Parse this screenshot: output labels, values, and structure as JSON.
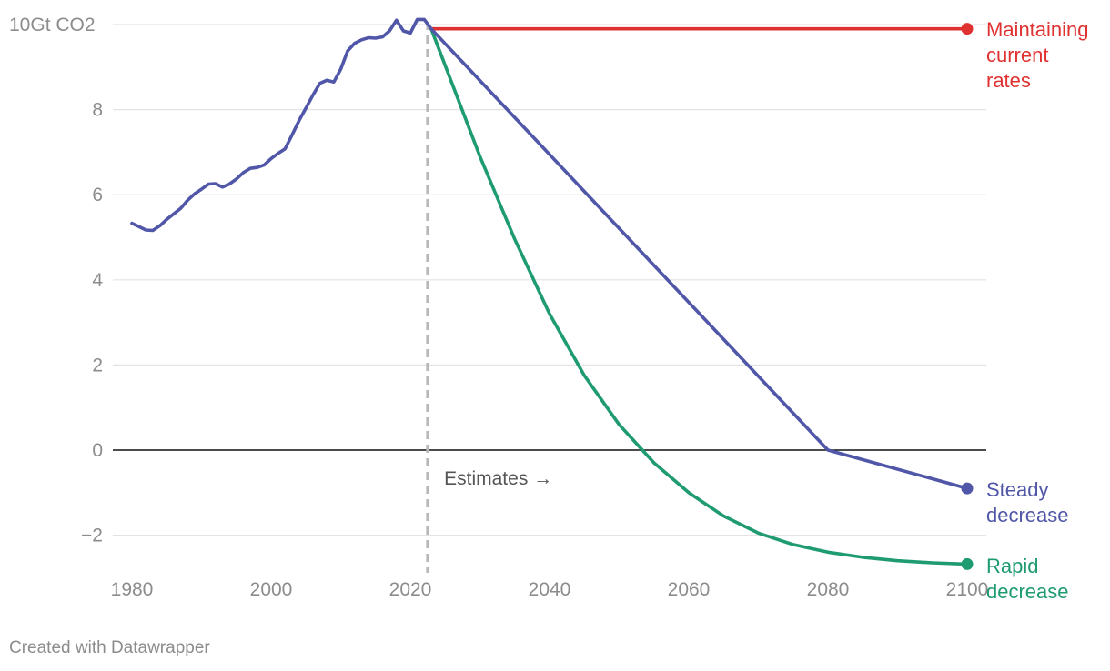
{
  "chart_data": {
    "type": "line",
    "title": "",
    "xlabel": "",
    "ylabel": "",
    "y_unit_label": "10Gt CO2",
    "xlim": [
      1977,
      2102
    ],
    "ylim": [
      -2.85,
      10.3
    ],
    "x_ticks": [
      1980,
      2000,
      2020,
      2040,
      2060,
      2080,
      2100
    ],
    "x_tick_labels": [
      "1980",
      "2000",
      "2020",
      "2040",
      "2060",
      "2080",
      "2100"
    ],
    "y_ticks": [
      -2,
      0,
      2,
      4,
      6,
      8,
      10
    ],
    "y_tick_labels": [
      "−2",
      "0",
      "2",
      "4",
      "6",
      "8",
      "10Gt CO2"
    ],
    "grid": true,
    "zero_line": true,
    "divider": {
      "x": 2022.5,
      "label": "Estimates →"
    },
    "series": [
      {
        "name": "historical",
        "color": "#5157a8",
        "points": [
          [
            1980,
            5.33
          ],
          [
            1981,
            5.25
          ],
          [
            1982,
            5.17
          ],
          [
            1983,
            5.16
          ],
          [
            1984,
            5.27
          ],
          [
            1985,
            5.42
          ],
          [
            1986,
            5.55
          ],
          [
            1987,
            5.68
          ],
          [
            1988,
            5.87
          ],
          [
            1989,
            6.02
          ],
          [
            1990,
            6.13
          ],
          [
            1991,
            6.25
          ],
          [
            1992,
            6.26
          ],
          [
            1993,
            6.18
          ],
          [
            1994,
            6.25
          ],
          [
            1995,
            6.37
          ],
          [
            1996,
            6.52
          ],
          [
            1997,
            6.62
          ],
          [
            1998,
            6.64
          ],
          [
            1999,
            6.7
          ],
          [
            2000,
            6.85
          ],
          [
            2001,
            6.97
          ],
          [
            2002,
            7.08
          ],
          [
            2003,
            7.4
          ],
          [
            2004,
            7.74
          ],
          [
            2005,
            8.04
          ],
          [
            2006,
            8.34
          ],
          [
            2007,
            8.62
          ],
          [
            2008,
            8.69
          ],
          [
            2009,
            8.65
          ],
          [
            2010,
            8.95
          ],
          [
            2011,
            9.38
          ],
          [
            2012,
            9.56
          ],
          [
            2013,
            9.64
          ],
          [
            2014,
            9.69
          ],
          [
            2015,
            9.68
          ],
          [
            2016,
            9.71
          ],
          [
            2017,
            9.85
          ],
          [
            2018,
            10.1
          ],
          [
            2019,
            9.85
          ],
          [
            2020,
            9.8
          ],
          [
            2021,
            10.12
          ],
          [
            2022,
            10.12
          ],
          [
            2023,
            9.9
          ]
        ]
      },
      {
        "name": "Maintaining current rates",
        "color": "#e03131",
        "points": [
          [
            2023,
            9.9
          ],
          [
            2100,
            9.9
          ]
        ],
        "label_lines": [
          "Maintaining",
          "current",
          "rates"
        ]
      },
      {
        "name": "Steady decrease",
        "color": "#5157a8",
        "points": [
          [
            2023,
            9.9
          ],
          [
            2080,
            0
          ],
          [
            2100,
            -0.9
          ]
        ],
        "label_lines": [
          "Steady",
          "decrease"
        ]
      },
      {
        "name": "Rapid decrease",
        "color": "#1f9b72",
        "points": [
          [
            2023,
            9.9
          ],
          [
            2030,
            6.9
          ],
          [
            2035,
            4.95
          ],
          [
            2040,
            3.2
          ],
          [
            2045,
            1.75
          ],
          [
            2050,
            0.6
          ],
          [
            2055,
            -0.3
          ],
          [
            2060,
            -1.0
          ],
          [
            2065,
            -1.55
          ],
          [
            2070,
            -1.95
          ],
          [
            2075,
            -2.22
          ],
          [
            2080,
            -2.4
          ],
          [
            2085,
            -2.52
          ],
          [
            2090,
            -2.6
          ],
          [
            2095,
            -2.65
          ],
          [
            2100,
            -2.68
          ]
        ],
        "label_lines": [
          "Rapid",
          "decrease"
        ]
      }
    ]
  },
  "footer": {
    "credit": "Created with Datawrapper"
  }
}
